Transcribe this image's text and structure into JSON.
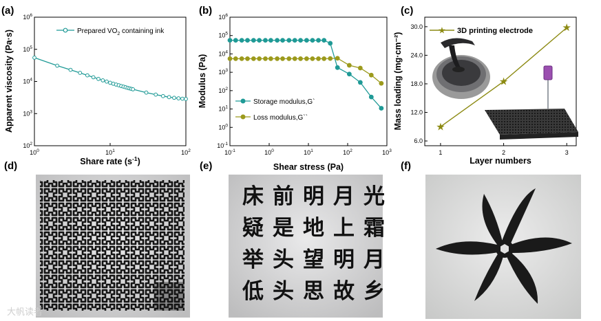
{
  "panel_labels": {
    "a": "(a)",
    "b": "(b)",
    "c": "(c)",
    "d": "(d)",
    "e": "(e)",
    "f": "(f)"
  },
  "chart_data": [
    {
      "type": "line",
      "panel": "a",
      "xlabel_main": "Share rate (s",
      "xlabel_sup": "-1",
      "xlabel_end": ")",
      "ylabel": "Apparent viscosity (Pa·s)",
      "xscale": "log",
      "yscale": "log",
      "xlim": [
        1,
        100
      ],
      "ylim": [
        100,
        1000000
      ],
      "x_ticks": [
        {
          "v": 1,
          "b": "10",
          "e": "0"
        },
        {
          "v": 10,
          "b": "10",
          "e": "1"
        },
        {
          "v": 100,
          "b": "10",
          "e": "2"
        }
      ],
      "y_ticks": [
        {
          "v": 100,
          "b": "10",
          "e": "2"
        },
        {
          "v": 1000,
          "b": "10",
          "e": "3"
        },
        {
          "v": 10000,
          "b": "10",
          "e": "4"
        },
        {
          "v": 100000,
          "b": "10",
          "e": "5"
        },
        {
          "v": 1000000,
          "b": "10",
          "e": "6"
        }
      ],
      "series": [
        {
          "name_main": "Prepared VO",
          "name_sub": "2",
          "name_end": " containing ink",
          "color": "#1f9a96",
          "x": [
            1,
            2,
            3,
            4,
            5,
            6,
            7,
            8,
            9,
            10,
            11,
            12,
            13,
            14,
            15,
            16,
            17,
            18,
            19,
            20,
            30,
            40,
            50,
            60,
            70,
            80,
            90,
            100
          ],
          "y": [
            55000,
            31000,
            23000,
            18500,
            15500,
            13500,
            12000,
            10800,
            9900,
            9100,
            8500,
            8000,
            7600,
            7200,
            6900,
            6600,
            6300,
            6100,
            5900,
            5700,
            4500,
            3900,
            3500,
            3250,
            3100,
            2980,
            2900,
            2850
          ]
        }
      ],
      "legend_position": "top-right"
    },
    {
      "type": "line",
      "panel": "b",
      "xlabel": "Shear stress (Pa)",
      "ylabel": "Modulus (Pa)",
      "xscale": "log",
      "yscale": "log",
      "xlim": [
        0.1,
        1000
      ],
      "ylim": [
        0.1,
        1000000
      ],
      "x_ticks": [
        {
          "v": 0.1,
          "b": "10",
          "e": "-1"
        },
        {
          "v": 1,
          "b": "10",
          "e": "0"
        },
        {
          "v": 10,
          "b": "10",
          "e": "1"
        },
        {
          "v": 100,
          "b": "10",
          "e": "2"
        },
        {
          "v": 1000,
          "b": "10",
          "e": "3"
        }
      ],
      "y_ticks": [
        {
          "v": 0.1,
          "b": "10",
          "e": "-1"
        },
        {
          "v": 1,
          "b": "10",
          "e": "0"
        },
        {
          "v": 10,
          "b": "10",
          "e": "1"
        },
        {
          "v": 100,
          "b": "10",
          "e": "2"
        },
        {
          "v": 1000,
          "b": "10",
          "e": "3"
        },
        {
          "v": 10000,
          "b": "10",
          "e": "4"
        },
        {
          "v": 100000,
          "b": "10",
          "e": "5"
        },
        {
          "v": 1000000,
          "b": "10",
          "e": "6"
        }
      ],
      "series": [
        {
          "name": "Storage modulus,G`",
          "color": "#1f9a96",
          "x": [
            0.1,
            0.14,
            0.2,
            0.28,
            0.4,
            0.56,
            0.8,
            1.1,
            1.6,
            2.2,
            3.2,
            4.5,
            6.3,
            9,
            12.7,
            18,
            25,
            36,
            55,
            110,
            210,
            400,
            720
          ],
          "y": [
            55000,
            55000,
            55000,
            55000,
            55000,
            55000,
            55000,
            55000,
            55000,
            55000,
            55000,
            55000,
            55000,
            55000,
            55000,
            55000,
            55000,
            38000,
            1800,
            800,
            280,
            45,
            11
          ]
        },
        {
          "name": "Loss modulus,G``",
          "color": "#9c9a1c",
          "x": [
            0.1,
            0.14,
            0.2,
            0.28,
            0.4,
            0.56,
            0.8,
            1.1,
            1.6,
            2.2,
            3.2,
            4.5,
            6.3,
            9,
            12.7,
            18,
            25,
            36,
            55,
            110,
            210,
            400,
            720
          ],
          "y": [
            5500,
            5500,
            5500,
            5500,
            5500,
            5500,
            5500,
            5500,
            5500,
            5500,
            5500,
            5500,
            5500,
            5500,
            5500,
            5500,
            5500,
            5600,
            5800,
            2400,
            1700,
            700,
            250
          ]
        }
      ],
      "legend_position": "center-left"
    },
    {
      "type": "line",
      "panel": "c",
      "xlabel": "Layer numbers",
      "ylabel": "Mass loading (mg·cm⁻²)",
      "xlim": [
        0.75,
        3.15
      ],
      "ylim": [
        5,
        32
      ],
      "x_ticks": [
        "1",
        "2",
        "3"
      ],
      "y_ticks": [
        "6.0",
        "12.0",
        "18.0",
        "24.0",
        "30.0"
      ],
      "series": [
        {
          "name": "3D printing electrode",
          "color": "#8c8a12",
          "x": [
            1,
            2,
            3
          ],
          "y": [
            9,
            18.5,
            29.8
          ]
        }
      ],
      "legend_position": "top-left"
    }
  ],
  "poem": [
    [
      "床",
      "前",
      "明",
      "月",
      "光"
    ],
    [
      "疑",
      "是",
      "地",
      "上",
      "霜"
    ],
    [
      "举",
      "头",
      "望",
      "明",
      "月"
    ],
    [
      "低",
      "头",
      "思",
      "故",
      "乡"
    ]
  ],
  "watermark": "大帆读者"
}
